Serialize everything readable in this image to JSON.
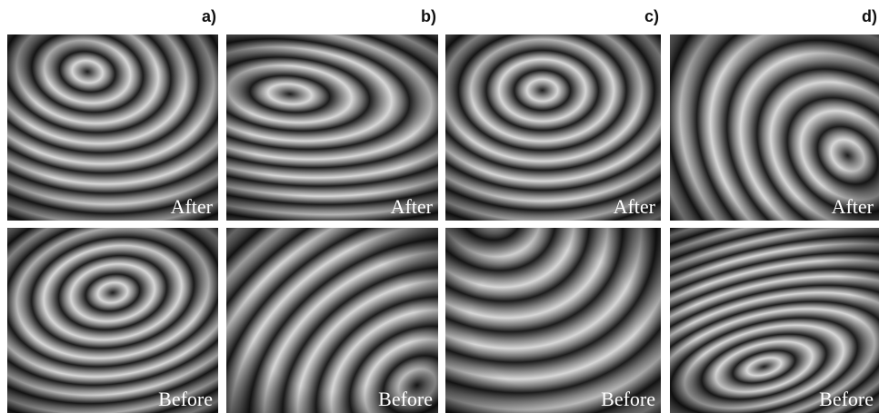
{
  "panels": [
    {
      "label": "a)",
      "images": [
        {
          "caption": "After"
        },
        {
          "caption": "Before"
        }
      ]
    },
    {
      "label": "b)",
      "images": [
        {
          "caption": "After"
        },
        {
          "caption": "Before"
        }
      ]
    },
    {
      "label": "c)",
      "images": [
        {
          "caption": "After"
        },
        {
          "caption": "Before"
        }
      ]
    },
    {
      "label": "d)",
      "images": [
        {
          "caption": "After"
        },
        {
          "caption": "Before"
        }
      ]
    }
  ]
}
